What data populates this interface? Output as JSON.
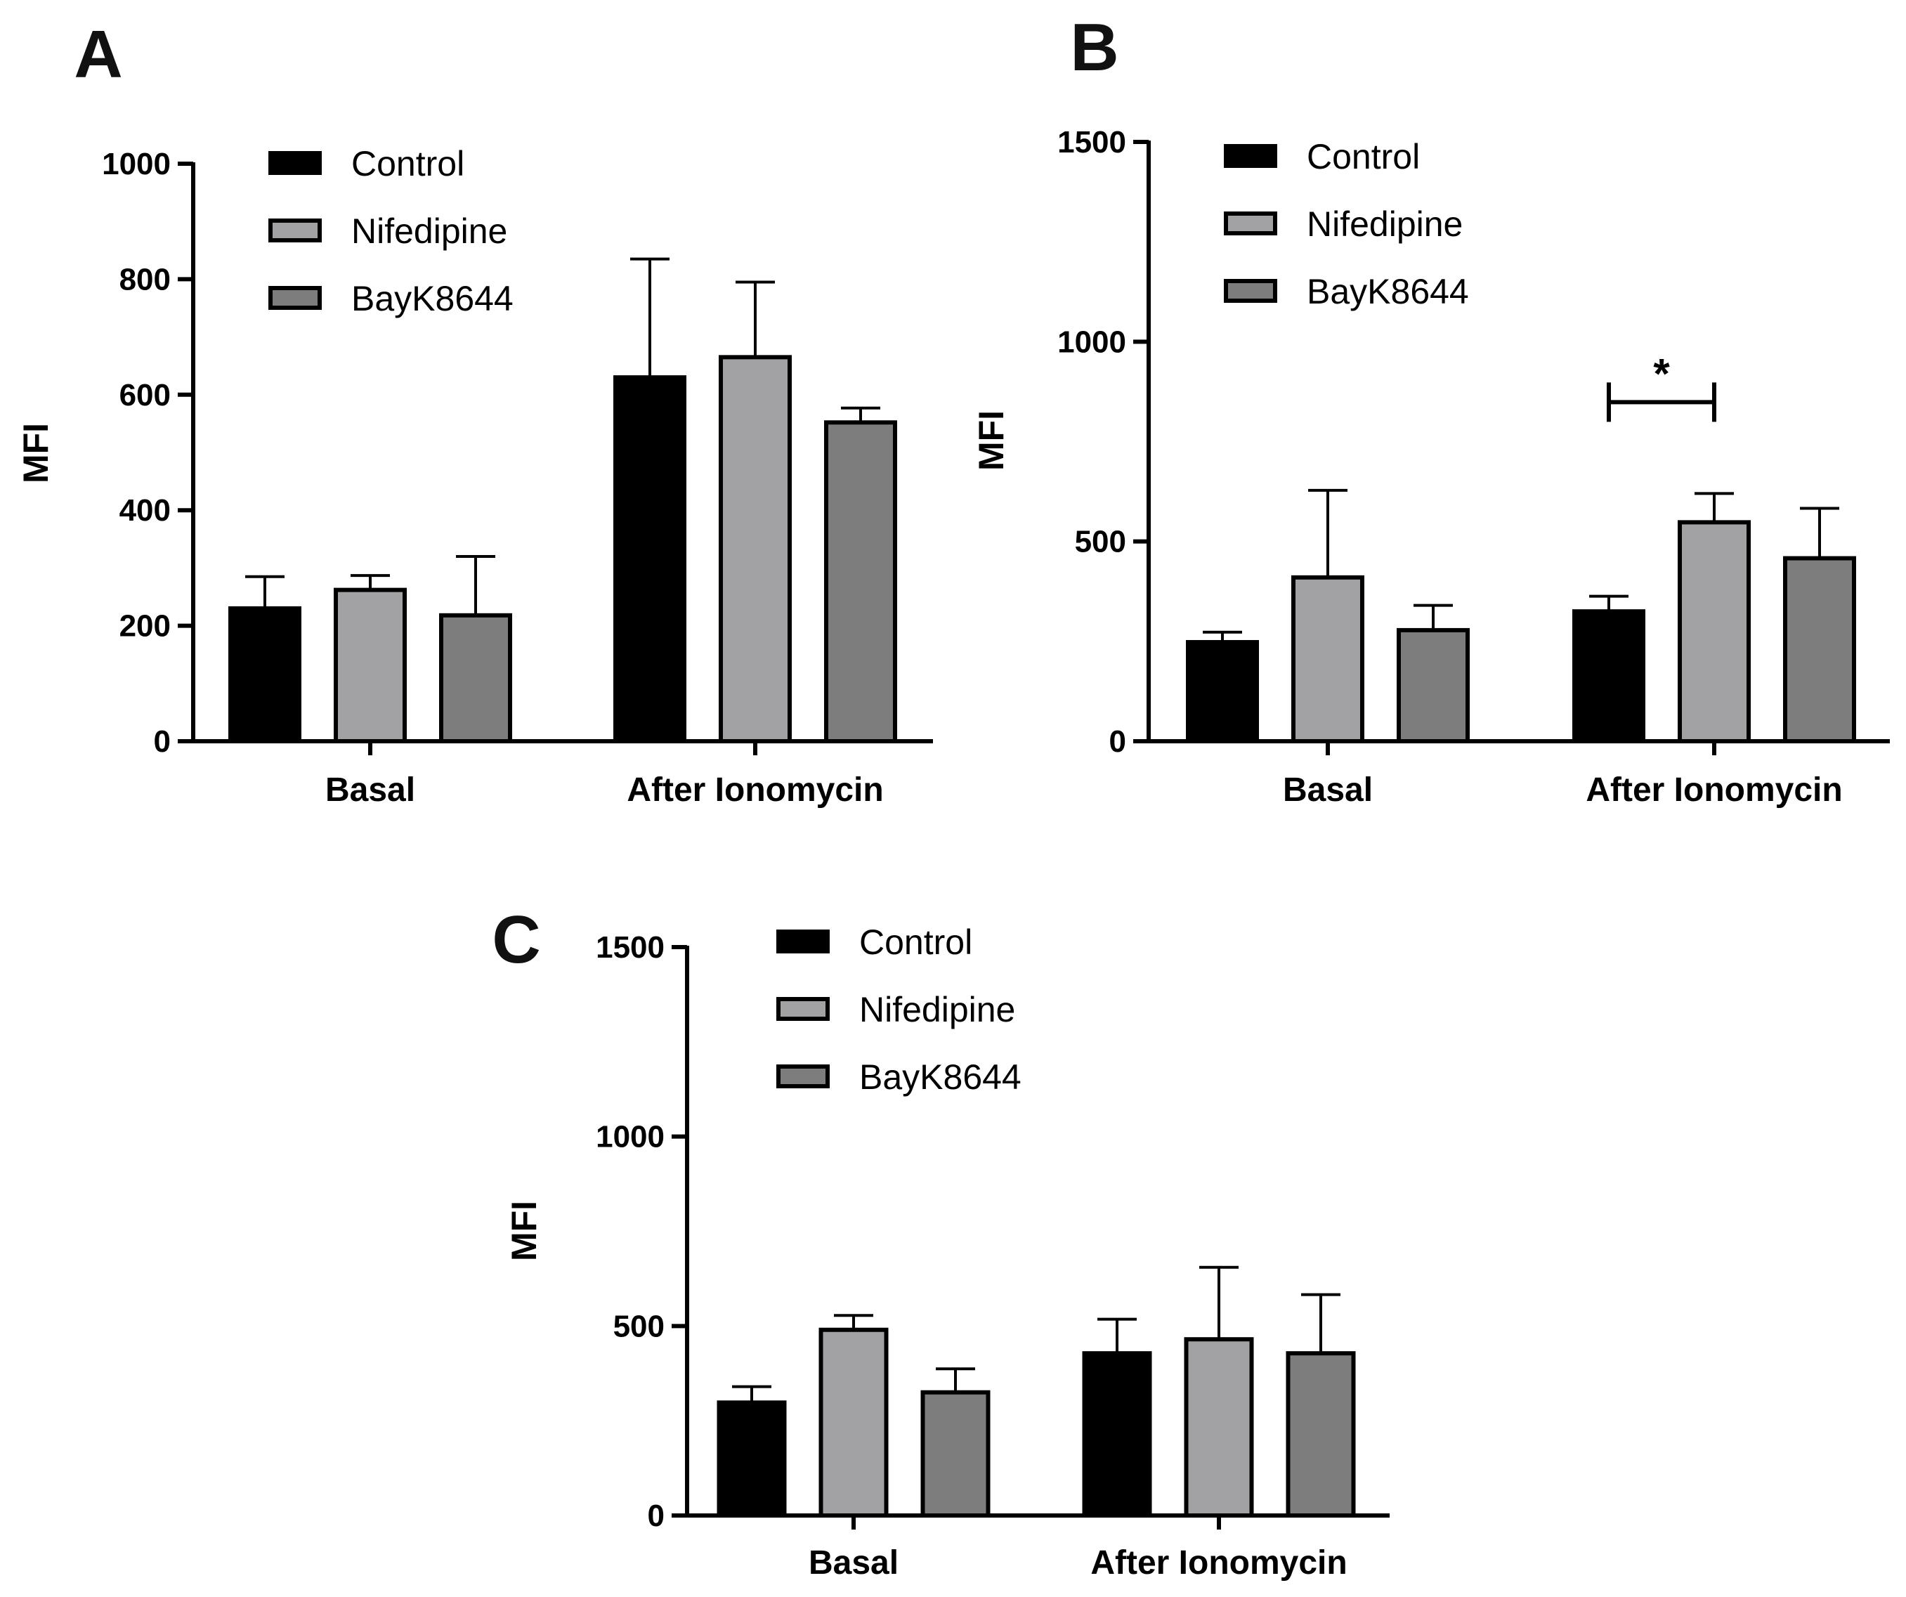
{
  "chart_data": [
    {
      "panel": "A",
      "type": "bar",
      "ylabel": "MFI",
      "ylim": [
        0,
        1000
      ],
      "yticks": [
        0,
        200,
        400,
        600,
        800,
        1000
      ],
      "categories": [
        "Basal",
        "After Ionomycin"
      ],
      "series": [
        {
          "name": "Control",
          "color": "#000000",
          "values": [
            230,
            630
          ],
          "errors": [
            55,
            205
          ]
        },
        {
          "name": "Nifedipine",
          "color": "#a2a2a4",
          "values": [
            262,
            665
          ],
          "errors": [
            25,
            130
          ]
        },
        {
          "name": "BayK8644",
          "color": "#7d7d7d",
          "values": [
            218,
            552
          ],
          "errors": [
            102,
            25
          ]
        }
      ]
    },
    {
      "panel": "B",
      "type": "bar",
      "ylabel": "MFI",
      "ylim": [
        0,
        1500
      ],
      "yticks": [
        0,
        500,
        1000,
        1500
      ],
      "categories": [
        "Basal",
        "After Ionomycin"
      ],
      "series": [
        {
          "name": "Control",
          "color": "#000000",
          "values": [
            248,
            325
          ],
          "errors": [
            25,
            38
          ]
        },
        {
          "name": "Nifedipine",
          "color": "#a2a2a4",
          "values": [
            410,
            548
          ],
          "errors": [
            218,
            72
          ]
        },
        {
          "name": "BayK8644",
          "color": "#7d7d7d",
          "values": [
            278,
            458
          ],
          "errors": [
            62,
            125
          ]
        }
      ],
      "significance": {
        "label": "*",
        "category": "After Ionomycin",
        "between": [
          "Control",
          "Nifedipine"
        ]
      }
    },
    {
      "panel": "C",
      "type": "bar",
      "ylabel": "MFI",
      "ylim": [
        0,
        1500
      ],
      "yticks": [
        0,
        500,
        1000,
        1500
      ],
      "categories": [
        "Basal",
        "After Ionomycin"
      ],
      "series": [
        {
          "name": "Control",
          "color": "#000000",
          "values": [
            298,
            428
          ],
          "errors": [
            42,
            90
          ]
        },
        {
          "name": "Nifedipine",
          "color": "#a2a2a4",
          "values": [
            490,
            465
          ],
          "errors": [
            38,
            190
          ]
        },
        {
          "name": "BayK8644",
          "color": "#7d7d7d",
          "values": [
            325,
            428
          ],
          "errors": [
            62,
            155
          ]
        }
      ]
    }
  ]
}
